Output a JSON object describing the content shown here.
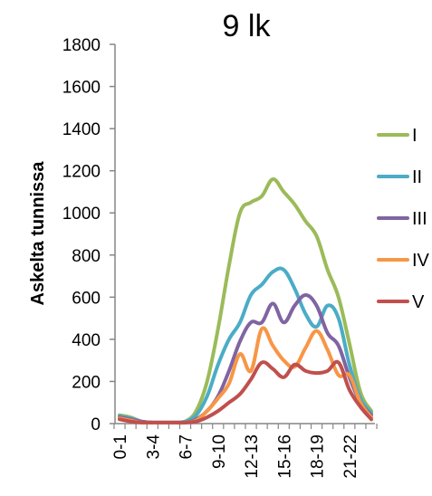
{
  "chart_data": {
    "type": "line",
    "title": "9 lk",
    "ylabel": "Askelta tunnissa",
    "xlabel": "",
    "ylim": [
      0,
      1800
    ],
    "yticks": [
      0,
      200,
      400,
      600,
      800,
      1000,
      1200,
      1400,
      1600,
      1800
    ],
    "categories": [
      "0-1",
      "1-2",
      "2-3",
      "3-4",
      "4-5",
      "5-6",
      "6-7",
      "7-8",
      "8-9",
      "9-10",
      "10-11",
      "11-12",
      "12-13",
      "13-14",
      "14-15",
      "15-16",
      "16-17",
      "17-18",
      "18-19",
      "19-20",
      "20-21",
      "21-22",
      "22-23",
      "23-24"
    ],
    "xtick_labels": [
      "0-1",
      "3-4",
      "6-7",
      "9-10",
      "12-13",
      "15-16",
      "18-19",
      "21-22"
    ],
    "xtick_indices": [
      0,
      3,
      6,
      9,
      12,
      15,
      18,
      21
    ],
    "grid": false,
    "legend_position": "right",
    "series": [
      {
        "name": "I",
        "color": "#9bbb59",
        "values": [
          40,
          30,
          10,
          5,
          5,
          5,
          10,
          60,
          200,
          450,
          750,
          1000,
          1050,
          1080,
          1160,
          1100,
          1040,
          960,
          890,
          730,
          600,
          380,
          150,
          60
        ]
      },
      {
        "name": "II",
        "color": "#4bacc6",
        "values": [
          35,
          25,
          10,
          5,
          5,
          5,
          10,
          40,
          130,
          280,
          400,
          480,
          610,
          660,
          720,
          730,
          640,
          520,
          460,
          560,
          500,
          280,
          120,
          50
        ]
      },
      {
        "name": "III",
        "color": "#8064a2",
        "values": [
          30,
          20,
          10,
          5,
          5,
          5,
          5,
          20,
          60,
          130,
          250,
          390,
          480,
          480,
          570,
          480,
          560,
          610,
          560,
          430,
          370,
          220,
          100,
          40
        ]
      },
      {
        "name": "IV",
        "color": "#f79646",
        "values": [
          25,
          15,
          5,
          5,
          5,
          5,
          5,
          15,
          60,
          120,
          190,
          330,
          250,
          450,
          370,
          300,
          270,
          360,
          440,
          350,
          230,
          230,
          100,
          30
        ]
      },
      {
        "name": "V",
        "color": "#c0504d",
        "values": [
          20,
          10,
          5,
          5,
          5,
          5,
          5,
          10,
          30,
          60,
          100,
          140,
          210,
          290,
          260,
          220,
          280,
          250,
          240,
          250,
          290,
          160,
          80,
          20
        ]
      }
    ]
  }
}
